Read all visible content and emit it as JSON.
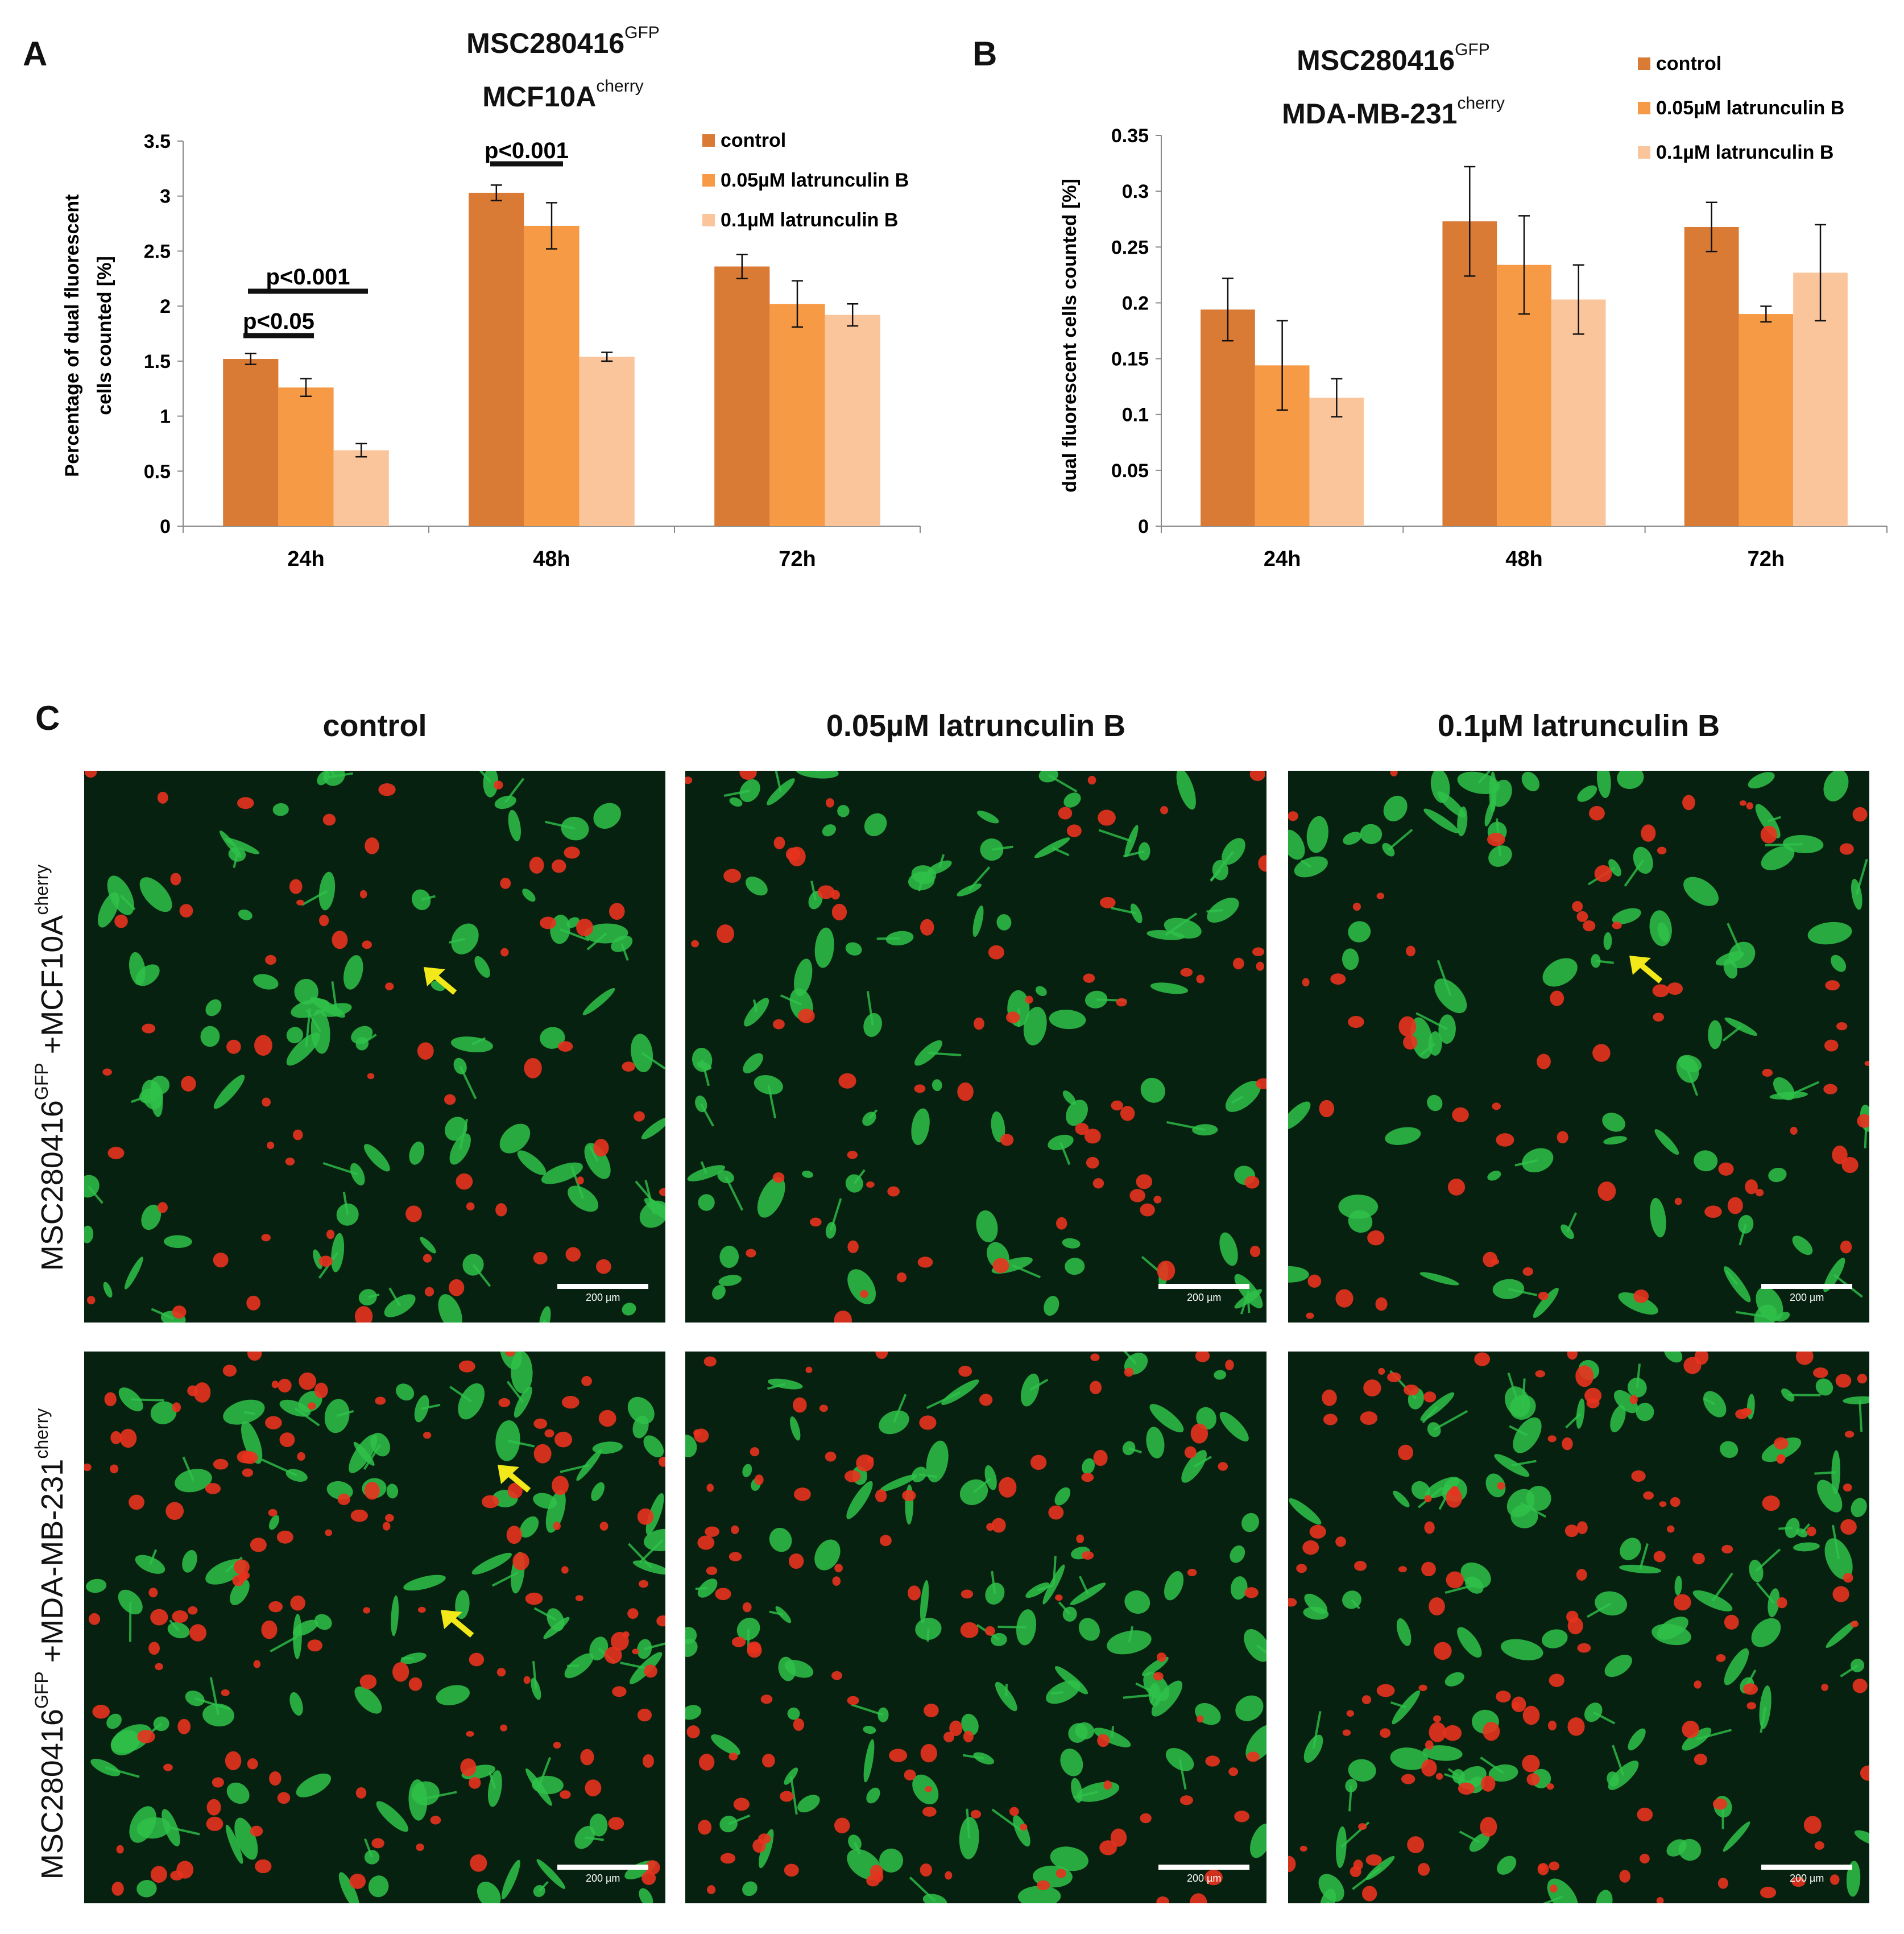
{
  "figure": {
    "panel_A": {
      "letter": "A",
      "title_line1_main": "MSC280416",
      "title_line1_sup": "GFP",
      "title_line2_main": "MCF10A",
      "title_line2_sup": "cherry"
    },
    "panel_B": {
      "letter": "B",
      "title_line1_main": "MSC280416",
      "title_line1_sup": "GFP",
      "title_line2_main": "MDA-MB-231",
      "title_line2_sup": "cherry"
    },
    "panel_C": {
      "letter": "C",
      "columns": [
        "control",
        "0.05µM latrunculin B",
        "0.1µM latrunculin B"
      ],
      "rows": [
        {
          "main1": "MSC280416",
          "sup1": "GFP",
          "main2": " +MCF10A",
          "sup2": "cherry"
        },
        {
          "main1": "MSC280416",
          "sup1": "GFP",
          "main2": " +MDA-MB-231",
          "sup2": "cherry"
        }
      ],
      "scale_label": "200 µm",
      "colors": {
        "background": "#06210f",
        "gfp": "#2fc24a",
        "cherry": "#e8321e",
        "arrow": "#f2e81a"
      }
    }
  },
  "chart_data": [
    {
      "type": "bar",
      "categories": [
        "24h",
        "48h",
        "72h"
      ],
      "series": [
        {
          "name": "control",
          "color": "#d97a35",
          "values": [
            1.52,
            3.03,
            2.36
          ],
          "errors": [
            0.05,
            0.07,
            0.11
          ]
        },
        {
          "name": "0.05µM latrunculin B",
          "color": "#f79a45",
          "values": [
            1.26,
            2.73,
            2.02
          ],
          "errors": [
            0.08,
            0.21,
            0.21
          ]
        },
        {
          "name": "0.1µM latrunculin B",
          "color": "#fbc59c",
          "values": [
            0.69,
            1.54,
            1.92
          ],
          "errors": [
            0.06,
            0.04,
            0.1
          ]
        }
      ],
      "ylabel_line1": "Percentage of dual fluorescent",
      "ylabel_line2": "cells counted [%]",
      "ylim": [
        0,
        3.5
      ],
      "yticks": [
        "0",
        "0.5",
        "1",
        "1.5",
        "2",
        "2.5",
        "3",
        "3.5"
      ],
      "annotations": [
        "p<0.05",
        "p<0.001",
        "p<0.001"
      ],
      "legend_position": "top-right"
    },
    {
      "type": "bar",
      "categories": [
        "24h",
        "48h",
        "72h"
      ],
      "series": [
        {
          "name": "control",
          "color": "#d97a35",
          "values": [
            0.194,
            0.273,
            0.268
          ],
          "errors": [
            0.028,
            0.049,
            0.022
          ]
        },
        {
          "name": "0.05µM latrunculin B",
          "color": "#f79a45",
          "values": [
            0.144,
            0.234,
            0.19
          ],
          "errors": [
            0.04,
            0.044,
            0.007
          ]
        },
        {
          "name": "0.1µM latrunculin B",
          "color": "#fbc59c",
          "values": [
            0.115,
            0.203,
            0.227
          ],
          "errors": [
            0.017,
            0.031,
            0.043
          ]
        }
      ],
      "ylabel": "dual fluorescent cells counted [%]",
      "ylim": [
        0,
        0.35
      ],
      "yticks": [
        "0",
        "0.05",
        "0.1",
        "0.15",
        "0.2",
        "0.25",
        "0.3",
        "0.35"
      ],
      "legend_position": "top-right"
    }
  ]
}
